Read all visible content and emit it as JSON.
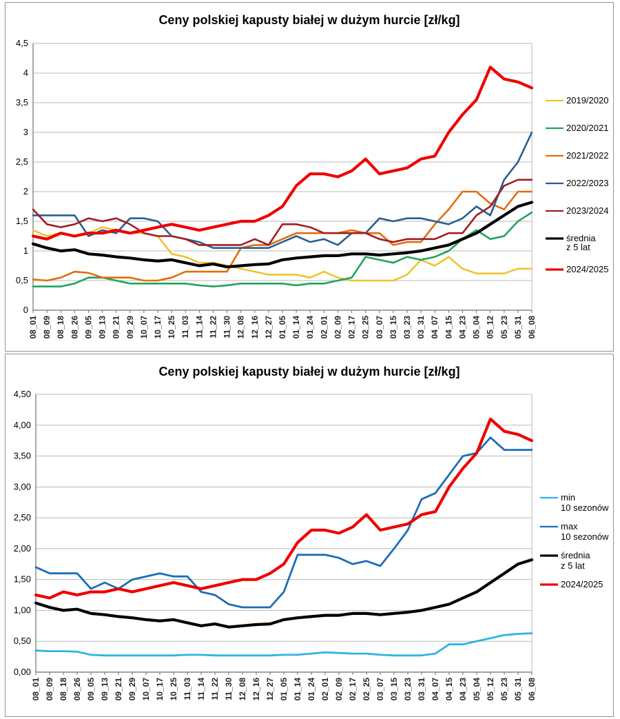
{
  "chart_data": [
    {
      "type": "line",
      "title": "Ceny polskiej kapusty białej w dużym hurcie [zł/kg]",
      "ylabel": "",
      "xlabel": "",
      "ylim": [
        0,
        4.5
      ],
      "y_step": 0.5,
      "grid": "horizontal",
      "legend_position": "right",
      "y_ticks": [
        "4,5",
        "4",
        "3,5",
        "3",
        "2,5",
        "2",
        "1,5",
        "1",
        "0,5",
        "0"
      ],
      "x_labels": [
        "08_01",
        "08_09",
        "08_18",
        "08_26",
        "09_05",
        "09_13",
        "09_21",
        "09_29",
        "10_07",
        "10_17",
        "10_25",
        "11_03",
        "11_14",
        "11_22",
        "11_30",
        "12_08",
        "12_16",
        "12_27",
        "01_05",
        "01_14",
        "01_24",
        "02_01",
        "02_09",
        "02_17",
        "02_25",
        "03_07",
        "03_15",
        "03_23",
        "03_31",
        "04_07",
        "04_15",
        "04_23",
        "05_04",
        "05_12",
        "05_23",
        "05_31",
        "06_08"
      ],
      "series": [
        {
          "name": "2019/2020",
          "legend_lines": [
            "2019/2020"
          ],
          "color": "#edc431",
          "width": 2.6,
          "values": [
            1.35,
            1.25,
            1.3,
            1.25,
            1.3,
            1.4,
            1.35,
            1.3,
            1.3,
            1.25,
            0.95,
            0.9,
            0.8,
            0.8,
            0.75,
            0.7,
            0.65,
            0.6,
            0.6,
            0.6,
            0.55,
            0.65,
            0.55,
            0.5,
            0.5,
            0.5,
            0.5,
            0.6,
            0.85,
            0.75,
            0.9,
            0.7,
            0.62,
            0.62,
            0.62,
            0.7,
            0.7
          ]
        },
        {
          "name": "2020/2021",
          "legend_lines": [
            "2020/2021"
          ],
          "color": "#1fa35b",
          "width": 2.6,
          "values": [
            0.4,
            0.4,
            0.4,
            0.45,
            0.55,
            0.55,
            0.5,
            0.45,
            0.45,
            0.45,
            0.45,
            0.45,
            0.42,
            0.4,
            0.42,
            0.45,
            0.45,
            0.45,
            0.45,
            0.42,
            0.45,
            0.45,
            0.5,
            0.55,
            0.9,
            0.85,
            0.8,
            0.9,
            0.85,
            0.9,
            1.0,
            1.2,
            1.35,
            1.2,
            1.25,
            1.5,
            1.65
          ]
        },
        {
          "name": "2021/2022",
          "legend_lines": [
            "2021/2022"
          ],
          "color": "#e36c0a",
          "width": 2.6,
          "values": [
            0.52,
            0.5,
            0.55,
            0.65,
            0.63,
            0.55,
            0.55,
            0.55,
            0.5,
            0.5,
            0.55,
            0.65,
            0.65,
            0.65,
            0.65,
            1.05,
            1.1,
            1.1,
            1.2,
            1.3,
            1.3,
            1.3,
            1.3,
            1.35,
            1.3,
            1.3,
            1.1,
            1.15,
            1.15,
            1.45,
            1.7,
            2.0,
            2.0,
            1.8,
            1.7,
            2.0,
            2.0
          ]
        },
        {
          "name": "2022/2023",
          "legend_lines": [
            "2022/2023"
          ],
          "color": "#275e94",
          "width": 2.6,
          "values": [
            1.6,
            1.6,
            1.6,
            1.6,
            1.25,
            1.35,
            1.3,
            1.55,
            1.55,
            1.5,
            1.25,
            1.2,
            1.15,
            1.05,
            1.05,
            1.05,
            1.05,
            1.05,
            1.15,
            1.25,
            1.15,
            1.2,
            1.1,
            1.3,
            1.3,
            1.55,
            1.5,
            1.55,
            1.55,
            1.5,
            1.45,
            1.55,
            1.75,
            1.6,
            2.2,
            2.5,
            3.0
          ]
        },
        {
          "name": "2023/2024",
          "legend_lines": [
            "2023/2024"
          ],
          "color": "#a21d21",
          "width": 2.6,
          "values": [
            1.7,
            1.45,
            1.4,
            1.45,
            1.55,
            1.5,
            1.55,
            1.45,
            1.3,
            1.25,
            1.25,
            1.2,
            1.1,
            1.1,
            1.1,
            1.1,
            1.2,
            1.1,
            1.45,
            1.45,
            1.4,
            1.3,
            1.3,
            1.3,
            1.3,
            1.2,
            1.15,
            1.2,
            1.2,
            1.2,
            1.3,
            1.3,
            1.6,
            1.75,
            2.1,
            2.2,
            2.2
          ]
        },
        {
          "name": "średnia z 5 lat",
          "legend_lines": [
            "średnia",
            "z 5 lat"
          ],
          "color": "#000000",
          "width": 4.2,
          "values": [
            1.12,
            1.05,
            1.0,
            1.02,
            0.95,
            0.93,
            0.9,
            0.88,
            0.85,
            0.83,
            0.85,
            0.8,
            0.75,
            0.78,
            0.73,
            0.75,
            0.77,
            0.78,
            0.85,
            0.88,
            0.9,
            0.92,
            0.92,
            0.95,
            0.95,
            0.93,
            0.95,
            0.97,
            1.0,
            1.05,
            1.1,
            1.2,
            1.3,
            1.45,
            1.6,
            1.75,
            1.82
          ]
        },
        {
          "name": "2024/2025",
          "legend_lines": [
            "2024/2025"
          ],
          "color": "#ee0000",
          "width": 4.2,
          "values": [
            1.25,
            1.2,
            1.3,
            1.25,
            1.3,
            1.3,
            1.35,
            1.3,
            1.35,
            1.4,
            1.45,
            1.4,
            1.35,
            1.4,
            1.45,
            1.5,
            1.5,
            1.6,
            1.75,
            2.1,
            2.3,
            2.3,
            2.25,
            2.35,
            2.55,
            2.3,
            2.35,
            2.4,
            2.55,
            2.6,
            3.0,
            3.3,
            3.55,
            4.1,
            3.9,
            3.85,
            3.75
          ]
        }
      ]
    },
    {
      "type": "line",
      "title": "Ceny polskiej kapusty białej w dużym hurcie [zł/kg]",
      "ylabel": "",
      "xlabel": "",
      "ylim": [
        0,
        4.5
      ],
      "y_step": 0.5,
      "grid": "horizontal",
      "legend_position": "right",
      "y_ticks": [
        "4,50",
        "4,00",
        "3,50",
        "3,00",
        "2,50",
        "2,00",
        "1,50",
        "1,00",
        "0,50",
        "0,00"
      ],
      "x_labels": [
        "08_01",
        "08_09",
        "08_18",
        "08_26",
        "09_05",
        "09_13",
        "09_21",
        "09_29",
        "10_07",
        "10_17",
        "10_25",
        "11_03",
        "11_14",
        "11_22",
        "11_30",
        "12_08",
        "12_16",
        "12_27",
        "01_05",
        "01_14",
        "01_24",
        "02_01",
        "02_09",
        "02_17",
        "02_25",
        "03_07",
        "03_15",
        "03_23",
        "03_31",
        "04_07",
        "04_15",
        "04_23",
        "05_04",
        "05_12",
        "05_23",
        "05_31",
        "06_08"
      ],
      "series": [
        {
          "name": "min 10 sezonów",
          "legend_lines": [
            "min",
            "10 sezonów"
          ],
          "color": "#2fb3e3",
          "width": 2.8,
          "values": [
            0.35,
            0.34,
            0.34,
            0.33,
            0.28,
            0.27,
            0.27,
            0.27,
            0.27,
            0.27,
            0.27,
            0.28,
            0.28,
            0.27,
            0.27,
            0.27,
            0.27,
            0.27,
            0.28,
            0.28,
            0.3,
            0.32,
            0.31,
            0.3,
            0.3,
            0.28,
            0.27,
            0.27,
            0.27,
            0.3,
            0.45,
            0.45,
            0.5,
            0.55,
            0.6,
            0.62,
            0.63
          ]
        },
        {
          "name": "max 10 sezonów",
          "legend_lines": [
            "max",
            "10 sezonów"
          ],
          "color": "#1a6db8",
          "width": 2.8,
          "values": [
            1.7,
            1.6,
            1.6,
            1.6,
            1.35,
            1.45,
            1.35,
            1.5,
            1.55,
            1.6,
            1.55,
            1.55,
            1.3,
            1.25,
            1.1,
            1.05,
            1.05,
            1.05,
            1.3,
            1.9,
            1.9,
            1.9,
            1.85,
            1.75,
            1.8,
            1.72,
            2.0,
            2.3,
            2.8,
            2.9,
            3.2,
            3.5,
            3.55,
            3.8,
            3.6,
            3.6,
            3.6
          ]
        },
        {
          "name": "średnia z 5 lat",
          "legend_lines": [
            "średnia",
            "z 5 lat"
          ],
          "color": "#000000",
          "width": 4.2,
          "values": [
            1.12,
            1.05,
            1.0,
            1.02,
            0.95,
            0.93,
            0.9,
            0.88,
            0.85,
            0.83,
            0.85,
            0.8,
            0.75,
            0.78,
            0.73,
            0.75,
            0.77,
            0.78,
            0.85,
            0.88,
            0.9,
            0.92,
            0.92,
            0.95,
            0.95,
            0.93,
            0.95,
            0.97,
            1.0,
            1.05,
            1.1,
            1.2,
            1.3,
            1.45,
            1.6,
            1.75,
            1.82
          ]
        },
        {
          "name": "2024/2025",
          "legend_lines": [
            "2024/2025"
          ],
          "color": "#ee0000",
          "width": 4.2,
          "values": [
            1.25,
            1.2,
            1.3,
            1.25,
            1.3,
            1.3,
            1.35,
            1.3,
            1.35,
            1.4,
            1.45,
            1.4,
            1.35,
            1.4,
            1.45,
            1.5,
            1.5,
            1.6,
            1.75,
            2.1,
            2.3,
            2.3,
            2.25,
            2.35,
            2.55,
            2.3,
            2.35,
            2.4,
            2.55,
            2.6,
            3.0,
            3.3,
            3.55,
            4.1,
            3.9,
            3.85,
            3.75
          ]
        }
      ]
    }
  ]
}
